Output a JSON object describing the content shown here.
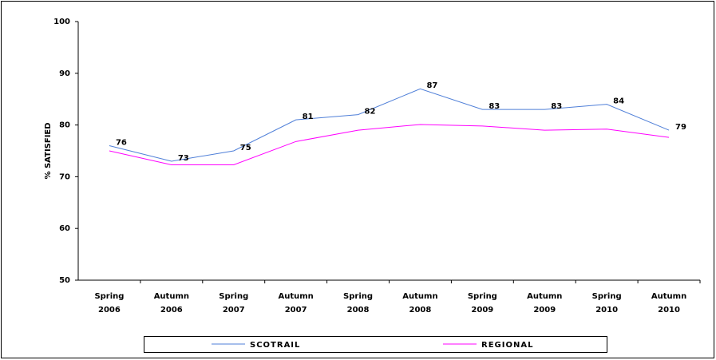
{
  "chart_data": {
    "type": "line",
    "y_label": "% SATISFIED",
    "categories": [
      "Spring 2006",
      "Autumn 2006",
      "Spring 2007",
      "Autumn 2007",
      "Spring 2008",
      "Autumn 2008",
      "Spring 2009",
      "Autumn 2009",
      "Spring 2010",
      "Autumn 2010"
    ],
    "series": [
      {
        "name": "SCOTRAIL",
        "color": "#4f7fd8",
        "values": [
          76,
          73,
          75,
          81,
          82,
          87,
          83,
          83,
          84,
          79
        ]
      },
      {
        "name": "REGIONAL",
        "color": "#ff00ff",
        "values": [
          75,
          72.3,
          72.3,
          76.8,
          79,
          80.1,
          79.8,
          79,
          79.2,
          77.6
        ]
      }
    ],
    "data_labels_series": 0,
    "ylim": [
      50,
      100
    ],
    "yticks": [
      50,
      60,
      70,
      80,
      90,
      100
    ],
    "grid": false
  }
}
